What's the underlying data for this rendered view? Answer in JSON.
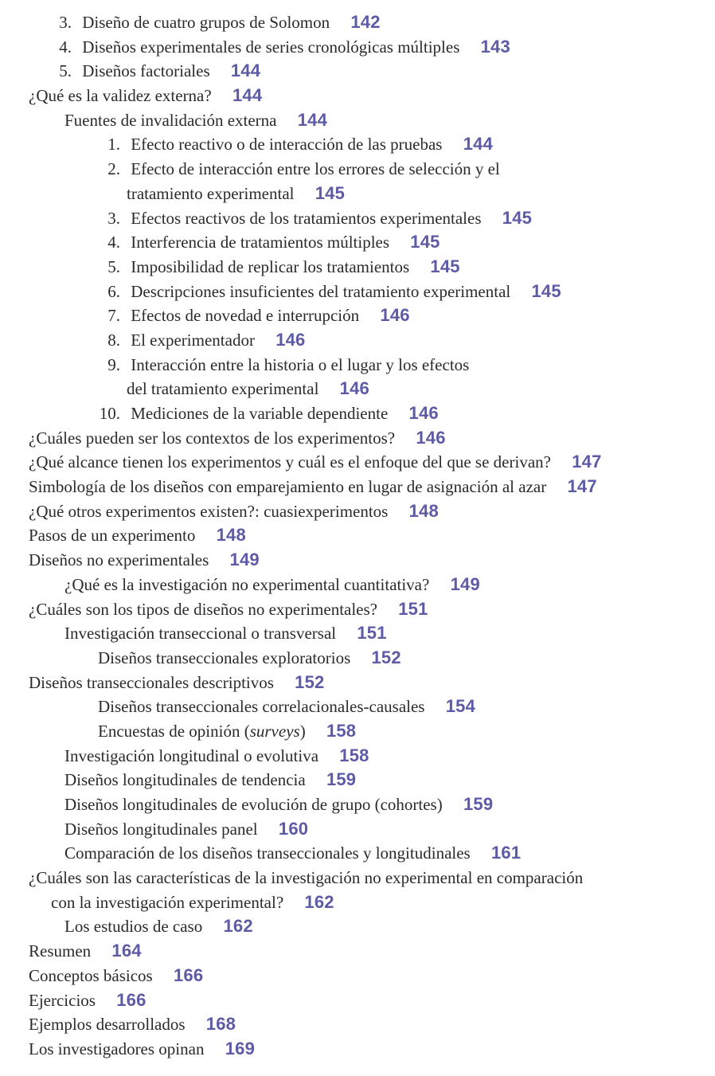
{
  "colors": {
    "page_number_accent": "#5d5aa6",
    "body_text": "#2c2a2b",
    "background": "#ffffff"
  },
  "toc": {
    "entries": [
      {
        "style": "olA",
        "num": "3.",
        "text": "Diseño de cuatro grupos de Solomon",
        "page": "142"
      },
      {
        "style": "olA",
        "num": "4.",
        "text": "Diseños experimentales de series cronológicas múltiples",
        "page": "143"
      },
      {
        "style": "olA",
        "num": "5.",
        "text": "Diseños factoriales",
        "page": "144"
      },
      {
        "style": "l0",
        "text": "¿Qué es la validez externa?",
        "page": "144"
      },
      {
        "style": "l1",
        "text": "Fuentes de invalidación externa",
        "page": "144"
      },
      {
        "style": "olB",
        "num": "1.",
        "text": "Efecto reactivo o de interacción de las pruebas",
        "page": "144"
      },
      {
        "style": "olB",
        "num": "2.",
        "text": "Efecto de interacción entre los errores de selección y el",
        "page": ""
      },
      {
        "style": "olB-cont",
        "text": "tratamiento experimental",
        "page": "145"
      },
      {
        "style": "olB",
        "num": "3.",
        "text": "Efectos reactivos de los tratamientos experimentales",
        "page": "145"
      },
      {
        "style": "olB",
        "num": "4.",
        "text": "Interferencia de tratamientos múltiples",
        "page": "145"
      },
      {
        "style": "olB",
        "num": "5.",
        "text": "Imposibilidad de replicar los tratamientos",
        "page": "145"
      },
      {
        "style": "olB",
        "num": "6.",
        "text": "Descripciones insuficientes del tratamiento experimental",
        "page": "145"
      },
      {
        "style": "olB",
        "num": "7.",
        "text": "Efectos de novedad e interrupción",
        "page": "146"
      },
      {
        "style": "olB",
        "num": "8.",
        "text": "El experimentador",
        "page": "146"
      },
      {
        "style": "olB",
        "num": "9.",
        "text": "Interacción entre la historia o el lugar y los efectos",
        "page": ""
      },
      {
        "style": "olB-cont",
        "text": "del tratamiento experimental",
        "page": "146"
      },
      {
        "style": "olB",
        "num": "10.",
        "text": "Mediciones de la variable dependiente",
        "page": "146"
      },
      {
        "style": "l0",
        "text": "¿Cuáles pueden ser los contextos de los experimentos?",
        "page": "146"
      },
      {
        "style": "l0",
        "text": "¿Qué alcance tienen los experimentos y cuál es el enfoque del que se derivan?",
        "page": "147"
      },
      {
        "style": "l0",
        "text": "Simbología de los diseños con emparejamiento en lugar de asignación al azar",
        "page": "147"
      },
      {
        "style": "l0",
        "text": "¿Qué otros experimentos existen?: cuasiexperimentos",
        "page": "148"
      },
      {
        "style": "l0",
        "text": "Pasos de un experimento",
        "page": "148"
      },
      {
        "style": "l0",
        "text": "Diseños no experimentales",
        "page": "149"
      },
      {
        "style": "l1",
        "text": "¿Qué es la investigación no experimental cuantitativa?",
        "page": "149"
      },
      {
        "style": "l0",
        "text": "¿Cuáles son los tipos de diseños no experimentales?",
        "page": "151"
      },
      {
        "style": "l1",
        "text": "Investigación transeccional o transversal",
        "page": "151"
      },
      {
        "style": "l2",
        "text": "Diseños transeccionales exploratorios",
        "page": "152"
      },
      {
        "style": "l0",
        "text": "Diseños transeccionales descriptivos",
        "page": "152"
      },
      {
        "style": "l2",
        "text": "Diseños transeccionales correlacionales-causales",
        "page": "154"
      },
      {
        "style": "l2",
        "text": "Encuestas de opinión (",
        "italic": "surveys",
        "text_after": ")",
        "page": "158"
      },
      {
        "style": "l1",
        "text": "Investigación longitudinal o evolutiva",
        "page": "158"
      },
      {
        "style": "l1",
        "text": "Diseños longitudinales de tendencia",
        "page": "159"
      },
      {
        "style": "l1",
        "text": "Diseños longitudinales de evolución de grupo (cohortes)",
        "page": "159"
      },
      {
        "style": "l1",
        "text": "Diseños longitudinales panel",
        "page": "160"
      },
      {
        "style": "l1",
        "text": "Comparación de los diseños transeccionales y longitudinales",
        "page": "161"
      },
      {
        "style": "l0",
        "text": "¿Cuáles son las características de la investigación no experimental en comparación",
        "page": ""
      },
      {
        "style": "l0-cont",
        "text": "con la investigación experimental?",
        "page": "162"
      },
      {
        "style": "l1",
        "text": "Los estudios de caso",
        "page": "162"
      },
      {
        "style": "l0",
        "text": "Resumen",
        "page": "164"
      },
      {
        "style": "l0",
        "text": "Conceptos básicos",
        "page": "166"
      },
      {
        "style": "l0",
        "text": "Ejercicios",
        "page": "166"
      },
      {
        "style": "l0",
        "text": "Ejemplos desarrollados",
        "page": "168"
      },
      {
        "style": "l0",
        "text": "Los investigadores opinan",
        "page": "169"
      }
    ]
  }
}
